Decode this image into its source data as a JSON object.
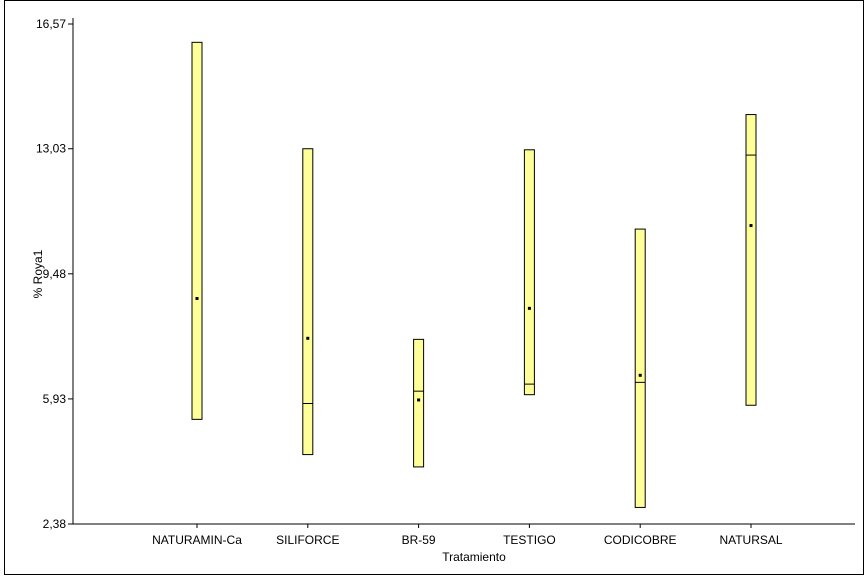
{
  "chart_data": {
    "type": "box",
    "xlabel": "Tratamiento",
    "ylabel": "% Roya1",
    "ylim": [
      2.38,
      16.57
    ],
    "yticks": [
      "2,38",
      "5,93",
      "9,48",
      "13,03",
      "16,57"
    ],
    "ytick_values": [
      2.38,
      5.93,
      9.48,
      13.03,
      16.57
    ],
    "categories": [
      "NATURAMIN-Ca",
      "SILIFORCE",
      "BR-59",
      "TESTIGO",
      "CODICOBRE",
      "NATURSAL"
    ],
    "boxes": [
      {
        "min": 5.35,
        "max": 16.05,
        "median": null,
        "mean": 8.78
      },
      {
        "min": 4.35,
        "max": 13.03,
        "median": 5.8,
        "mean": 7.65
      },
      {
        "min": 4.0,
        "max": 7.62,
        "median": 6.15,
        "mean": 5.9
      },
      {
        "min": 6.05,
        "max": 13.0,
        "median": 6.35,
        "mean": 8.5
      },
      {
        "min": 2.85,
        "max": 10.75,
        "median": 6.4,
        "mean": 6.6
      },
      {
        "min": 5.75,
        "max": 14.0,
        "median": 12.85,
        "mean": 10.85
      }
    ],
    "colors": {
      "box_fill": "#ffff99",
      "box_stroke": "#000000",
      "axis": "#000000"
    },
    "grid": false,
    "legend": "none"
  }
}
